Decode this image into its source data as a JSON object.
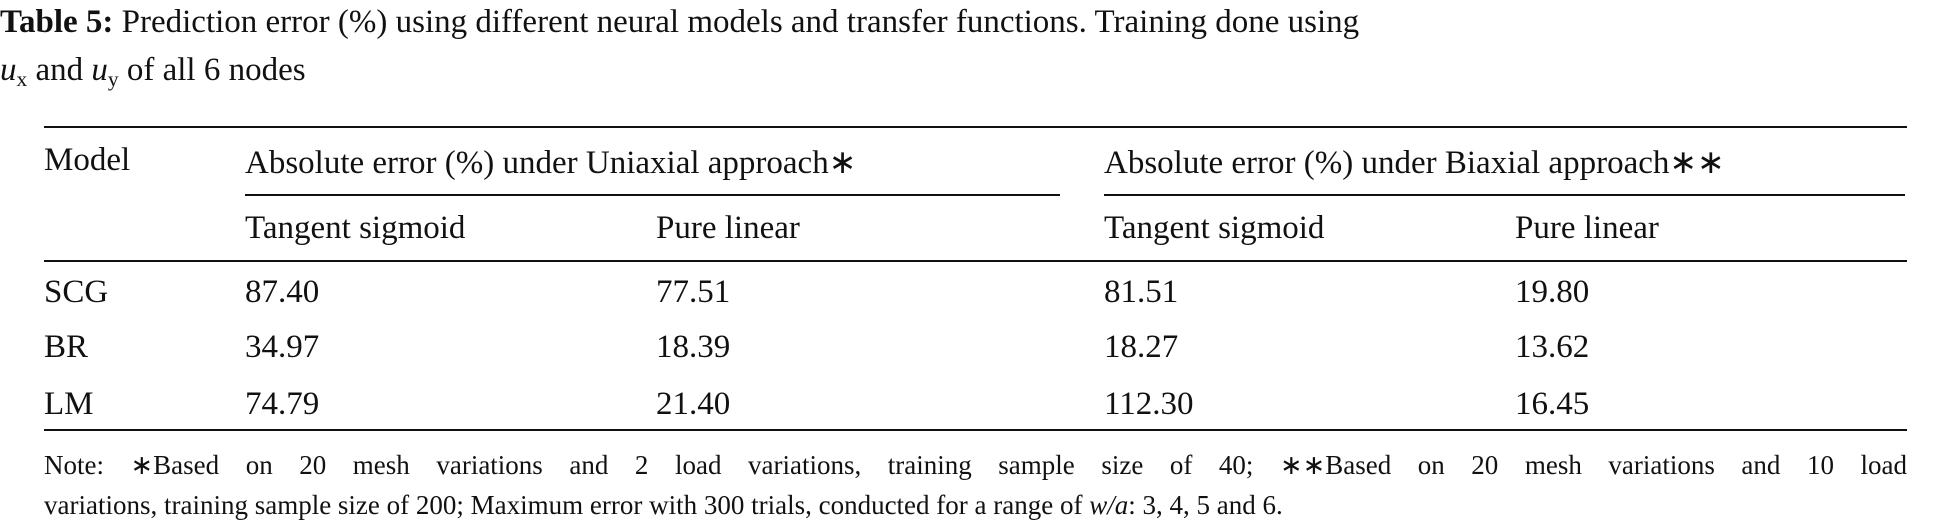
{
  "caption": {
    "label": "Table 5:",
    "line1": "Prediction error (%) using different neural models and transfer functions. Training done using",
    "var1": "u",
    "sub1": "x",
    "mid": "and",
    "var2": "u",
    "sub2": "y",
    "end": "of all 6 nodes"
  },
  "table": {
    "header": [
      "Model",
      "Absolute error (%) under Uniaxial approach∗",
      "Absolute error (%) under Biaxial approach∗∗"
    ],
    "subheader": [
      "Tangent sigmoid",
      "Pure linear",
      "Tangent sigmoid",
      "Pure linear"
    ],
    "rows": [
      [
        "SCG",
        "87.40",
        "77.51",
        "81.51",
        "19.80"
      ],
      [
        "BR",
        "34.97",
        "18.39",
        "18.27",
        "13.62"
      ],
      [
        "LM",
        "74.79",
        "21.40",
        "112.30",
        "16.45"
      ]
    ]
  },
  "note": {
    "line1": "Note: ∗Based on 20 mesh variations and 2 load variations, training sample size of 40; ∗∗Based on 20 mesh variations and 10 load",
    "line2": "variations, training sample size of 200; Maximum error with 300 trials, conducted for a range of",
    "var": "w/a",
    "end": ": 3, 4, 5 and 6."
  }
}
